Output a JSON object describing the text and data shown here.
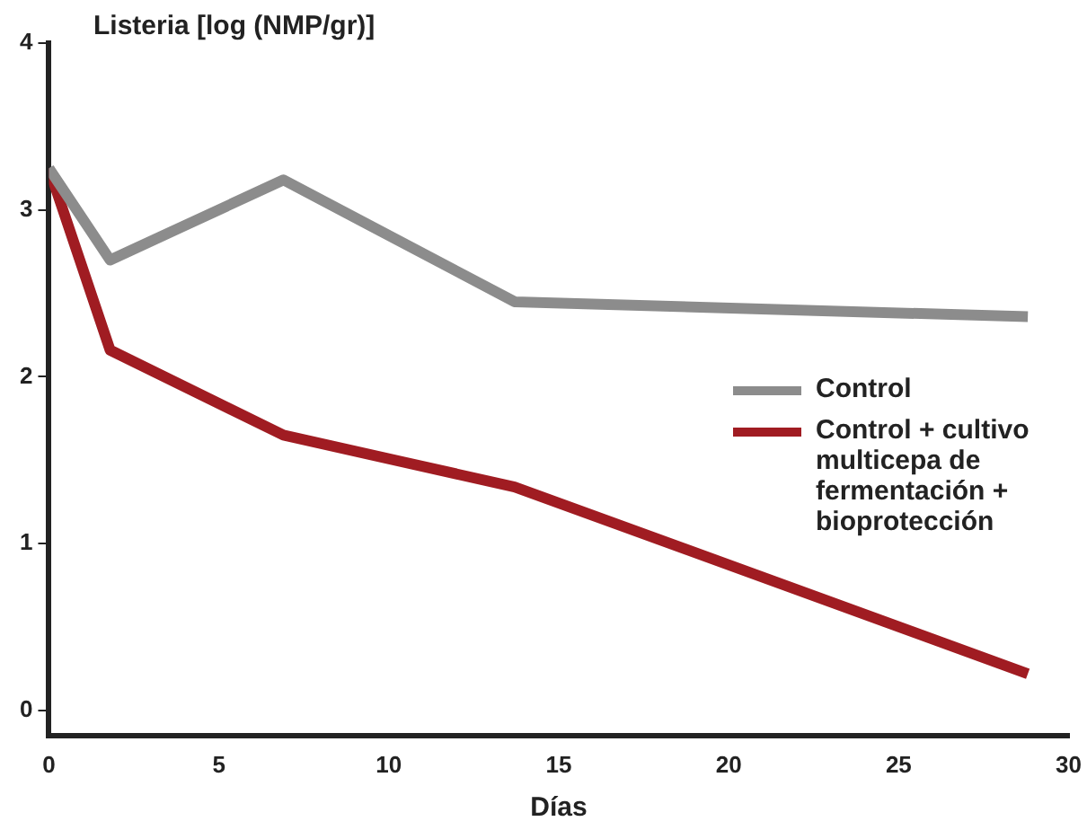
{
  "chart_data": {
    "type": "line",
    "ylabel": "Listeria [log (NMP/gr)]",
    "xlabel": "Días",
    "xlim": [
      0,
      30
    ],
    "xticks": [
      0,
      5,
      10,
      15,
      20,
      25,
      30
    ],
    "ylim": [
      -0.15,
      4
    ],
    "yticks": [
      0,
      1,
      2,
      3,
      4
    ],
    "grid": false,
    "legend": "right",
    "marker": "none",
    "line_style": "solid",
    "series": [
      {
        "name": "Control",
        "color": "#8c8c8c",
        "x": [
          0,
          1.8,
          6.9,
          13.7,
          28.8
        ],
        "values": [
          3.25,
          2.7,
          3.18,
          2.45,
          2.36
        ]
      },
      {
        "name": "Control + cultivo multicepa de fermentación + bioprotección",
        "color": "#a01c22",
        "x": [
          0,
          1.8,
          6.9,
          13.7,
          28.8
        ],
        "values": [
          3.25,
          2.16,
          1.65,
          1.34,
          0.22
        ]
      }
    ]
  }
}
